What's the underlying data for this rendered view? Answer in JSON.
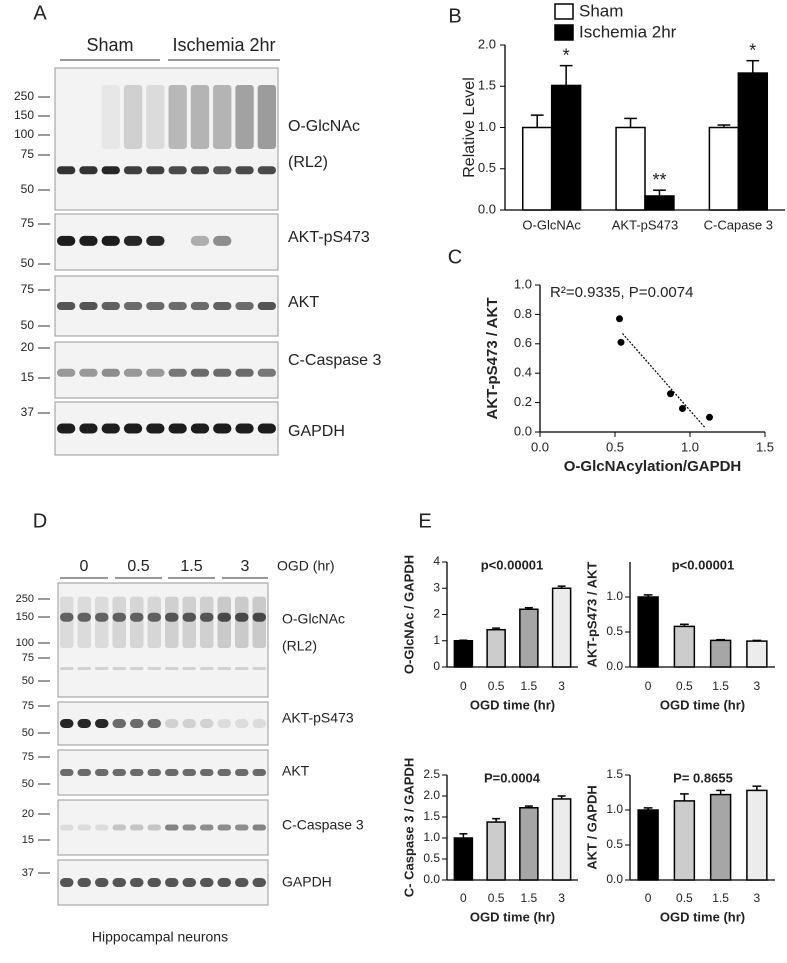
{
  "panel_labels": [
    "A",
    "B",
    "C",
    "D",
    "E"
  ],
  "blots": [
    {
      "group_labels": [
        "Sham",
        "Ischemia 2hr"
      ],
      "strips": [
        {
          "label": "O-GlcNAc",
          "sublabel": "(RL2)",
          "markers": [
            250,
            150,
            100,
            75,
            50
          ]
        },
        {
          "label": "AKT-pS473",
          "markers": [
            75,
            50
          ]
        },
        {
          "label": "AKT",
          "markers": [
            75,
            50
          ]
        },
        {
          "label": "C-Caspase 3",
          "markers": [
            20,
            15
          ]
        },
        {
          "label": "GAPDH",
          "markers": [
            37
          ]
        }
      ]
    },
    {
      "group_labels": [
        "0",
        "0.5",
        "1.5",
        "3"
      ],
      "group_axis_label": "OGD (hr)",
      "caption": "Hippocampal neurons",
      "strips": [
        {
          "label": "O-GlcNAc",
          "sublabel": "(RL2)",
          "markers": [
            250,
            150,
            100,
            75,
            50
          ]
        },
        {
          "label": "AKT-pS473",
          "markers": [
            75,
            50
          ]
        },
        {
          "label": "AKT",
          "markers": [
            75,
            50
          ]
        },
        {
          "label": "C-Caspase 3",
          "markers": [
            20,
            15
          ]
        },
        {
          "label": "GAPDH",
          "markers": [
            37
          ]
        }
      ]
    }
  ],
  "chart_data": [
    {
      "type": "bar",
      "categories": [
        "O-GlcNAc",
        "AKT-pS473",
        "C-Capase 3"
      ],
      "series": [
        {
          "name": "Sham",
          "color": "#ffffff",
          "values": [
            1.0,
            1.0,
            1.0
          ],
          "errors": [
            0.15,
            0.11,
            0.03
          ]
        },
        {
          "name": "Ischemia 2hr",
          "color": "#000000",
          "values": [
            1.51,
            0.17,
            1.66
          ],
          "errors": [
            0.24,
            0.07,
            0.15
          ],
          "annotations": [
            "*",
            "**",
            "*"
          ]
        }
      ],
      "ylabel": "Relative Level",
      "ylim": [
        0,
        2
      ],
      "yticks": [
        {
          "value": 0,
          "label": "0.0"
        },
        {
          "value": 0.5,
          "label": "0.5"
        },
        {
          "value": 1,
          "label": "1.0"
        },
        {
          "value": 1.5,
          "label": "1.5"
        },
        {
          "value": 2,
          "label": "2.0"
        }
      ],
      "legend": "top"
    },
    {
      "type": "scatter",
      "x": [
        0.53,
        0.54,
        0.87,
        0.95,
        1.13
      ],
      "values": [
        0.77,
        0.61,
        0.26,
        0.16,
        0.1
      ],
      "fit_line": {
        "x": [
          0.55,
          1.1
        ],
        "y": [
          0.67,
          0.03
        ]
      },
      "annotation": "R²=0.9335, P=0.0074",
      "xlabel": "O-GlcNAcylation/GAPDH",
      "ylabel": "AKT-pS473 / AKT",
      "xlim": [
        0,
        1.5
      ],
      "xticks": [
        {
          "value": 0,
          "label": "0.0"
        },
        {
          "value": 0.5,
          "label": "0.5"
        },
        {
          "value": 1,
          "label": "1.0"
        },
        {
          "value": 1.5,
          "label": "1.5"
        }
      ],
      "ylim": [
        0,
        1
      ],
      "yticks": [
        {
          "value": 0,
          "label": "0.0"
        },
        {
          "value": 0.2,
          "label": "0.2"
        },
        {
          "value": 0.4,
          "label": "0.4"
        },
        {
          "value": 0.6,
          "label": "0.6"
        },
        {
          "value": 0.8,
          "label": "0.8"
        },
        {
          "value": 1,
          "label": "1.0"
        }
      ]
    },
    {
      "type": "bar",
      "categories": [
        "0",
        "0.5",
        "1.5",
        "3"
      ],
      "colors": [
        "#000000",
        "#cccccc",
        "#a6a6a6",
        "#ececec"
      ],
      "values": [
        1.0,
        1.42,
        2.2,
        3.0
      ],
      "errors": [
        0.02,
        0.06,
        0.06,
        0.08
      ],
      "annotation": "p<0.00001",
      "xlabel": "OGD time (hr)",
      "ylabel": "O-GlcNAc / GAPDH",
      "ylim": [
        0,
        4
      ],
      "yticks": [
        0,
        1,
        2,
        3,
        4
      ]
    },
    {
      "type": "bar",
      "categories": [
        "0",
        "0.5",
        "1.5",
        "3"
      ],
      "colors": [
        "#000000",
        "#cccccc",
        "#a6a6a6",
        "#ececec"
      ],
      "values": [
        1.0,
        0.58,
        0.38,
        0.37
      ],
      "errors": [
        0.03,
        0.03,
        0.01,
        0.01
      ],
      "annotation": "p<0.00001",
      "xlabel": "OGD time (hr)",
      "ylabel": "AKT-pS473 / AKT",
      "ylim": [
        0,
        1.5
      ],
      "yticks": [
        {
          "value": 0,
          "label": "0.0"
        },
        {
          "value": 0.5,
          "label": "0.5"
        },
        {
          "value": 1,
          "label": "1.0"
        }
      ]
    },
    {
      "type": "bar",
      "categories": [
        "0",
        "0.5",
        "1.5",
        "3"
      ],
      "colors": [
        "#000000",
        "#cccccc",
        "#a6a6a6",
        "#ececec"
      ],
      "values": [
        1.0,
        1.38,
        1.72,
        1.93
      ],
      "errors": [
        0.1,
        0.08,
        0.04,
        0.07
      ],
      "annotation": "P=0.0004",
      "xlabel": "OGD time (hr)",
      "ylabel": "C- Caspase 3 / GAPDH",
      "ylim": [
        0,
        2.5
      ],
      "yticks": [
        {
          "value": 0,
          "label": "0.0"
        },
        {
          "value": 0.5,
          "label": "0.5"
        },
        {
          "value": 1,
          "label": "1.0"
        },
        {
          "value": 1.5,
          "label": "1.5"
        },
        {
          "value": 2,
          "label": "2.0"
        },
        {
          "value": 2.5,
          "label": "2.5"
        }
      ]
    },
    {
      "type": "bar",
      "categories": [
        "0",
        "0.5",
        "1.5",
        "3"
      ],
      "colors": [
        "#000000",
        "#cccccc",
        "#a6a6a6",
        "#ececec"
      ],
      "values": [
        1.0,
        1.13,
        1.22,
        1.28
      ],
      "errors": [
        0.03,
        0.1,
        0.06,
        0.06
      ],
      "annotation": "P= 0.8655",
      "xlabel": "OGD time (hr)",
      "ylabel": "AKT / GAPDH",
      "ylim": [
        0,
        1.5
      ],
      "yticks": [
        {
          "value": 0,
          "label": "0.0"
        },
        {
          "value": 0.5,
          "label": "0.5"
        },
        {
          "value": 1,
          "label": "1.0"
        },
        {
          "value": 1.5,
          "label": "1.5"
        }
      ]
    }
  ]
}
